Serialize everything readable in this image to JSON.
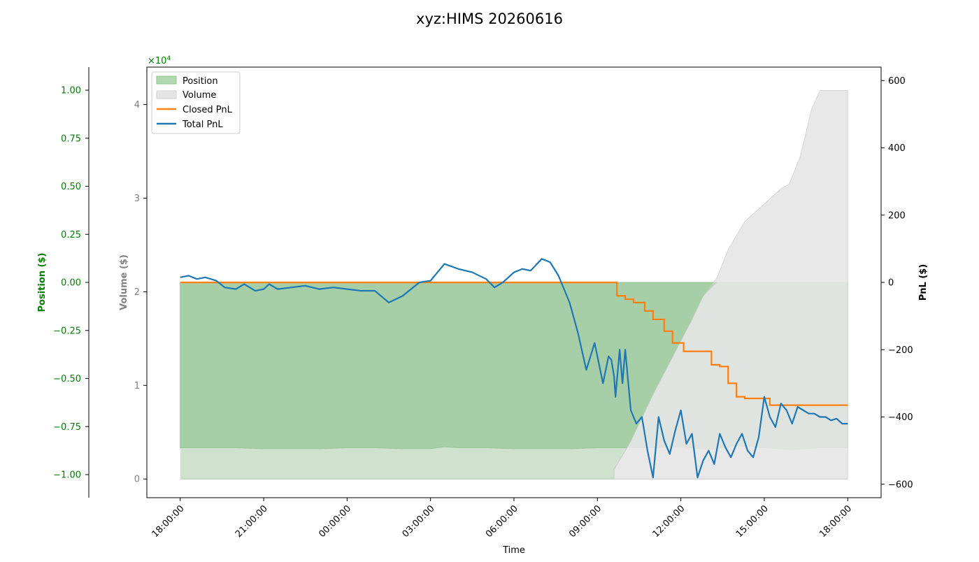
{
  "colors": {
    "position": "#008000",
    "volume": "#808080",
    "closed_pnl": "#ff7f0e",
    "total_pnl": "#1f77b4",
    "position_fill": "#b1d8b1",
    "volume_fill": "#e5e5e5",
    "overlap_fill": "#9ec59e"
  },
  "chart_data": {
    "type": "line",
    "title": "xyz:HIMS 20260616",
    "xlabel": "Time",
    "x_ticks": [
      "18:00:00",
      "21:00:00",
      "00:00:00",
      "03:00:00",
      "06:00:00",
      "09:00:00",
      "12:00:00",
      "15:00:00",
      "18:00:00"
    ],
    "x_range_hours": [
      -1.2,
      25.2
    ],
    "grid": false,
    "legend": {
      "placement": "top-left",
      "entries": [
        "Position",
        "Volume",
        "Closed PnL",
        "Total PnL"
      ]
    },
    "axes": {
      "position": {
        "label": "Position ($)",
        "ylim": [
          -1.12,
          1.12
        ],
        "ticks": [
          "1.00",
          "0.75",
          "0.50",
          "0.25",
          "0.00",
          "−0.25",
          "−0.50",
          "−0.75",
          "−1.00"
        ],
        "tick_values": [
          1.0,
          0.75,
          0.5,
          0.25,
          0.0,
          -0.25,
          -0.5,
          -0.75,
          -1.0
        ]
      },
      "volume": {
        "label": "Volume ($)",
        "multiplier": "×10",
        "multiplier_exp": "4",
        "ylim": [
          -0.2,
          4.4
        ],
        "ticks": [
          "4",
          "3",
          "2",
          "1",
          "0"
        ],
        "tick_values": [
          4,
          3,
          2,
          1,
          0
        ]
      },
      "pnl": {
        "label": "PnL ($)",
        "ylim": [
          -640,
          640
        ],
        "ticks": [
          "600",
          "400",
          "200",
          "0",
          "−200",
          "−400",
          "−600"
        ],
        "tick_values": [
          600,
          400,
          200,
          0,
          -200,
          -400,
          -600
        ]
      }
    },
    "series": [
      {
        "name": "Position",
        "axis": "position",
        "kind": "area",
        "x": [
          0,
          1,
          2,
          3,
          4,
          5,
          6,
          7,
          8,
          9,
          9.5,
          10,
          11,
          12,
          13,
          14,
          15,
          16,
          17,
          18,
          19,
          20,
          21,
          22,
          23,
          24
        ],
        "y": [
          -0.86,
          -0.86,
          -0.86,
          -0.865,
          -0.865,
          -0.865,
          -0.86,
          -0.86,
          -0.865,
          -0.865,
          -0.855,
          -0.86,
          -0.86,
          -0.865,
          -0.865,
          -0.865,
          -0.86,
          -0.86,
          -0.86,
          -0.855,
          -0.87,
          -0.85,
          -0.86,
          -0.87,
          -0.86,
          -0.86
        ]
      },
      {
        "name": "Volume",
        "axis": "volume",
        "kind": "area",
        "x": [
          0,
          15.6,
          15.6,
          16.2,
          17.0,
          17.7,
          18.4,
          18.8,
          19.3,
          19.7,
          20.3,
          21.6,
          21.9,
          22.3,
          22.7,
          23.0,
          24
        ],
        "y": [
          0,
          0,
          0.1,
          0.4,
          0.9,
          1.3,
          1.7,
          1.95,
          2.15,
          2.45,
          2.75,
          3.1,
          3.15,
          3.45,
          3.95,
          4.15,
          4.15
        ]
      },
      {
        "name": "Closed PnL",
        "axis": "pnl",
        "kind": "step",
        "x": [
          0,
          15.6,
          15.7,
          16.0,
          16.3,
          16.7,
          17.0,
          17.4,
          17.7,
          18.1,
          18.6,
          19.1,
          19.4,
          19.7,
          20.0,
          20.3,
          20.8,
          21.2,
          24
        ],
        "y": [
          0,
          0,
          -40,
          -50,
          -60,
          -85,
          -110,
          -145,
          -180,
          -205,
          -205,
          -245,
          -250,
          -300,
          -340,
          -345,
          -345,
          -365,
          -365
        ]
      },
      {
        "name": "Total PnL",
        "axis": "pnl",
        "kind": "line",
        "x": [
          0,
          0.3,
          0.6,
          0.9,
          1.3,
          1.6,
          2.0,
          2.3,
          2.7,
          3.0,
          3.2,
          3.5,
          4.0,
          4.5,
          5.0,
          5.5,
          6.0,
          6.5,
          7.0,
          7.5,
          8.0,
          8.3,
          8.6,
          9.0,
          9.5,
          10.0,
          10.5,
          11.0,
          11.3,
          11.6,
          12.0,
          12.3,
          12.6,
          13.0,
          13.3,
          13.6,
          14.0,
          14.3,
          14.6,
          14.9,
          15.2,
          15.4,
          15.5,
          15.6,
          15.65,
          15.8,
          15.9,
          16.0,
          16.2,
          16.4,
          16.6,
          16.8,
          17.0,
          17.2,
          17.4,
          17.6,
          17.8,
          18.0,
          18.2,
          18.4,
          18.6,
          18.8,
          19.0,
          19.2,
          19.4,
          19.6,
          19.8,
          20.0,
          20.2,
          20.4,
          20.6,
          20.8,
          21.0,
          21.2,
          21.4,
          21.6,
          21.8,
          22.0,
          22.2,
          22.4,
          22.6,
          22.8,
          23.0,
          23.2,
          23.4,
          23.6,
          23.8,
          24.0
        ],
        "y": [
          15,
          20,
          10,
          15,
          5,
          -15,
          -20,
          -5,
          -25,
          -20,
          -5,
          -20,
          -15,
          -10,
          -20,
          -15,
          -20,
          -25,
          -25,
          -60,
          -40,
          -20,
          0,
          5,
          55,
          40,
          30,
          10,
          -15,
          0,
          30,
          40,
          35,
          70,
          60,
          20,
          -60,
          -150,
          -260,
          -180,
          -300,
          -220,
          -230,
          -280,
          -340,
          -200,
          -300,
          -200,
          -380,
          -420,
          -400,
          -500,
          -580,
          -400,
          -470,
          -510,
          -440,
          -380,
          -480,
          -450,
          -580,
          -530,
          -500,
          -540,
          -450,
          -490,
          -520,
          -480,
          -450,
          -500,
          -520,
          -460,
          -340,
          -400,
          -430,
          -360,
          -380,
          -420,
          -370,
          -380,
          -390,
          -390,
          -400,
          -400,
          -410,
          -405,
          -420,
          -420
        ]
      }
    ]
  }
}
